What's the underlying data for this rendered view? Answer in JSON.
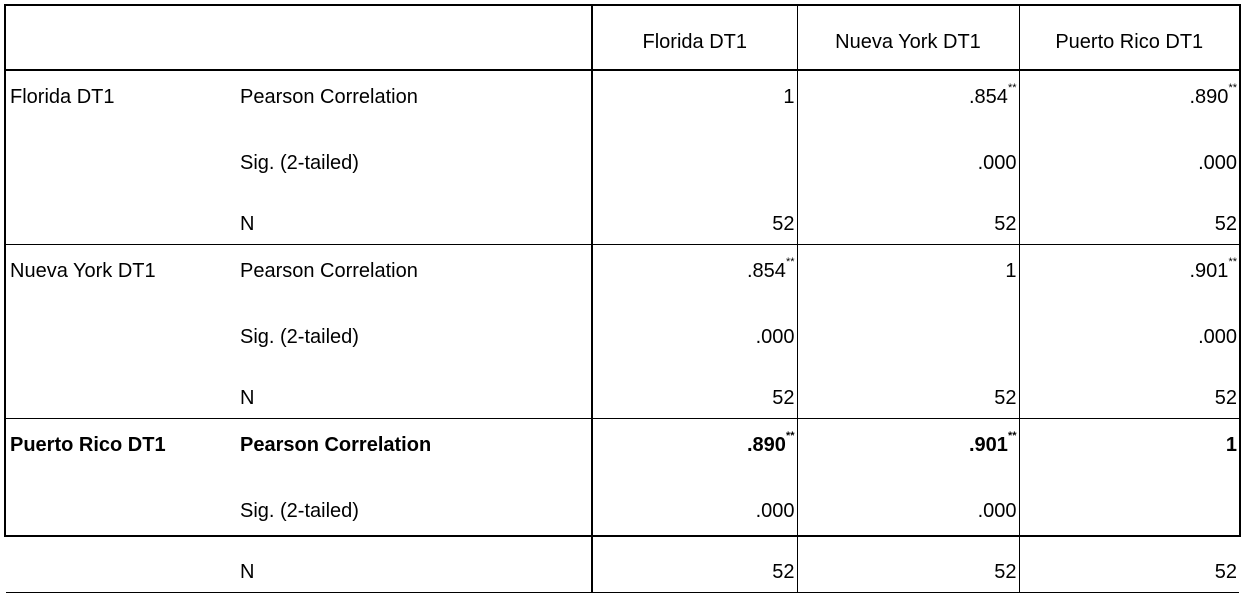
{
  "columns": [
    "",
    "",
    "Florida DT1",
    "Nueva York DT1",
    "Puerto Rico DT1"
  ],
  "footnote_marker": "**",
  "groups": [
    {
      "variable": "Florida DT1",
      "bold": false,
      "rows": [
        {
          "stat": "Pearson Correlation",
          "values": [
            "1",
            ".854",
            ".890"
          ],
          "sig": [
            false,
            true,
            true
          ]
        },
        {
          "stat": "Sig. (2-tailed)",
          "values": [
            "",
            ".000",
            ".000"
          ],
          "sig": [
            false,
            false,
            false
          ]
        },
        {
          "stat": "N",
          "values": [
            "52",
            "52",
            "52"
          ],
          "sig": [
            false,
            false,
            false
          ]
        }
      ]
    },
    {
      "variable": "Nueva York DT1",
      "bold": false,
      "rows": [
        {
          "stat": "Pearson Correlation",
          "values": [
            ".854",
            "1",
            ".901"
          ],
          "sig": [
            true,
            false,
            true
          ]
        },
        {
          "stat": "Sig. (2-tailed)",
          "values": [
            ".000",
            "",
            ".000"
          ],
          "sig": [
            false,
            false,
            false
          ]
        },
        {
          "stat": "N",
          "values": [
            "52",
            "52",
            "52"
          ],
          "sig": [
            false,
            false,
            false
          ]
        }
      ]
    },
    {
      "variable": "Puerto Rico DT1",
      "bold": true,
      "rows": [
        {
          "stat": "Pearson Correlation",
          "values": [
            ".890",
            ".901",
            "1"
          ],
          "sig": [
            true,
            true,
            false
          ]
        },
        {
          "stat": "Sig. (2-tailed)",
          "values": [
            ".000",
            ".000",
            ""
          ],
          "sig": [
            false,
            false,
            false
          ]
        },
        {
          "stat": "N",
          "values": [
            "52",
            "52",
            "52"
          ],
          "sig": [
            false,
            false,
            false
          ]
        }
      ]
    }
  ]
}
